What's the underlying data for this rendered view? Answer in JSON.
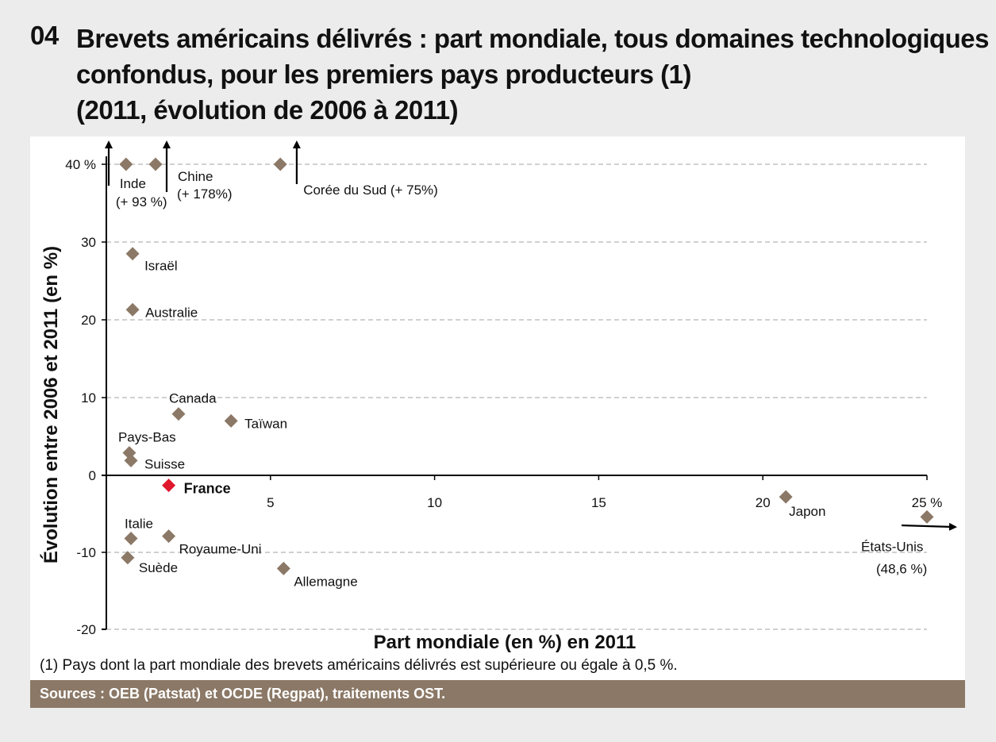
{
  "header": {
    "number": "04",
    "title_lines": [
      "Brevets américains délivrés : part mondiale, tous domaines technologiques",
      "confondus, pour les premiers pays producteurs (1)",
      "(2011, évolution de 2006 à 2011)"
    ]
  },
  "chart_data": {
    "type": "scatter",
    "xlabel": "Part mondiale (en %) en 2011",
    "ylabel": "Évolution entre 2006 et 2011 (en %)",
    "xlim": [
      0,
      25
    ],
    "ylim": [
      -20,
      40
    ],
    "x_ticks": [
      {
        "value": 5,
        "label": "5"
      },
      {
        "value": 10,
        "label": "10"
      },
      {
        "value": 15,
        "label": "15"
      },
      {
        "value": 20,
        "label": "20"
      },
      {
        "value": 25,
        "label": "25 %"
      }
    ],
    "y_ticks": [
      {
        "value": 40,
        "label": "40 %"
      },
      {
        "value": 30,
        "label": "30"
      },
      {
        "value": 20,
        "label": "20"
      },
      {
        "value": 10,
        "label": "10"
      },
      {
        "value": 0,
        "label": "0"
      },
      {
        "value": -10,
        "label": "-10"
      },
      {
        "value": -20,
        "label": "-20"
      }
    ],
    "grid": "horizontal dashed",
    "marker_color": "#8b7866",
    "highlight_color": "#e0182d",
    "points": [
      {
        "name": "Inde",
        "x": 0.6,
        "y": 40,
        "off_scale": true,
        "note": "(+ 93 %)"
      },
      {
        "name": "Chine",
        "x": 1.5,
        "y": 40,
        "off_scale": true,
        "note": "(+ 178%)"
      },
      {
        "name": "Corée du Sud",
        "x": 5.3,
        "y": 40,
        "off_scale": true,
        "note": "(+ 75%)"
      },
      {
        "name": "Israël",
        "x": 0.8,
        "y": 28.5
      },
      {
        "name": "Australie",
        "x": 0.8,
        "y": 21.3
      },
      {
        "name": "Canada",
        "x": 2.2,
        "y": 7.9
      },
      {
        "name": "Taïwan",
        "x": 3.8,
        "y": 7.0
      },
      {
        "name": "Pays-Bas",
        "x": 0.7,
        "y": 2.9
      },
      {
        "name": "Suisse",
        "x": 0.75,
        "y": 1.9
      },
      {
        "name": "France",
        "x": 1.9,
        "y": -1.3,
        "highlight": true
      },
      {
        "name": "Japon",
        "x": 20.7,
        "y": -2.8
      },
      {
        "name": "Italie",
        "x": 0.75,
        "y": -8.2
      },
      {
        "name": "Royaume-Uni",
        "x": 1.9,
        "y": -7.9
      },
      {
        "name": "Suède",
        "x": 0.65,
        "y": -10.7
      },
      {
        "name": "Allemagne",
        "x": 5.4,
        "y": -12.1
      },
      {
        "name": "États-Unis",
        "x": 25,
        "y": -5.4,
        "off_scale": true,
        "note": "(48,6 %)"
      }
    ]
  },
  "footnote": "(1) Pays dont la part mondiale des brevets américains délivrés est supérieure ou égale à 0,5 %.",
  "sources": "Sources : OEB (Patstat) et OCDE (Regpat), traitements OST."
}
